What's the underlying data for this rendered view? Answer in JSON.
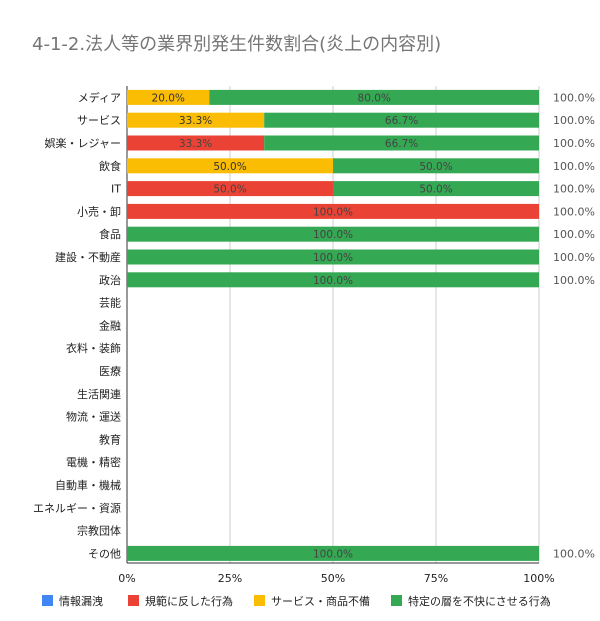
{
  "chart_data": {
    "type": "bar",
    "orientation": "horizontal",
    "stacked": "percent",
    "title": "4-1-2.法人等の業界別発生件数割合(炎上の内容別)",
    "categories": [
      "メディア",
      "サービス",
      "娯楽・レジャー",
      "飲食",
      "IT",
      "小売・卸",
      "食品",
      "建設・不動産",
      "政治",
      "芸能",
      "金融",
      "衣料・装飾",
      "医療",
      "生活関連",
      "物流・運送",
      "教育",
      "電機・精密",
      "自動車・機械",
      "エネルギー・資源",
      "宗教団体",
      "その他"
    ],
    "series": [
      {
        "name": "情報漏洩",
        "color": "#4285f4",
        "values": [
          0,
          0,
          0,
          0,
          0,
          0,
          0,
          0,
          0,
          0,
          0,
          0,
          0,
          0,
          0,
          0,
          0,
          0,
          0,
          0,
          0
        ],
        "labels": [
          "",
          "",
          "",
          "",
          "",
          "",
          "",
          "",
          "",
          "",
          "",
          "",
          "",
          "",
          "",
          "",
          "",
          "",
          "",
          "",
          ""
        ]
      },
      {
        "name": "規範に反した行為",
        "color": "#ea4335",
        "values": [
          0,
          0,
          33.3,
          0,
          50,
          100,
          0,
          0,
          0,
          0,
          0,
          0,
          0,
          0,
          0,
          0,
          0,
          0,
          0,
          0,
          0
        ],
        "labels": [
          "",
          "",
          "33.3%",
          "",
          "50.0%",
          "100.0%",
          "",
          "",
          "",
          "",
          "",
          "",
          "",
          "",
          "",
          "",
          "",
          "",
          "",
          "",
          ""
        ]
      },
      {
        "name": "サービス・商品不備",
        "color": "#fbbc04",
        "values": [
          20,
          33.3,
          0,
          50,
          0,
          0,
          0,
          0,
          0,
          0,
          0,
          0,
          0,
          0,
          0,
          0,
          0,
          0,
          0,
          0,
          0
        ],
        "labels": [
          "20.0%",
          "33.3%",
          "",
          "50.0%",
          "",
          "",
          "",
          "",
          "",
          "",
          "",
          "",
          "",
          "",
          "",
          "",
          "",
          "",
          "",
          "",
          ""
        ]
      },
      {
        "name": "特定の層を不快にさせる行為",
        "color": "#34a853",
        "values": [
          80,
          66.7,
          66.7,
          50,
          50,
          0,
          100,
          100,
          100,
          0,
          0,
          0,
          0,
          0,
          0,
          0,
          0,
          0,
          0,
          0,
          100
        ],
        "labels": [
          "80.0%",
          "66.7%",
          "66.7%",
          "50.0%",
          "50.0%",
          "",
          "100.0%",
          "100.0%",
          "100.0%",
          "",
          "",
          "",
          "",
          "",
          "",
          "",
          "",
          "",
          "",
          "",
          "100.0%"
        ]
      }
    ],
    "totals": [
      "100.0%",
      "100.0%",
      "100.0%",
      "100.0%",
      "100.0%",
      "100.0%",
      "100.0%",
      "100.0%",
      "100.0%",
      "",
      "",
      "",
      "",
      "",
      "",
      "",
      "",
      "",
      "",
      "",
      "100.0%"
    ],
    "xlim": [
      0,
      100
    ],
    "xticks": [
      "0%",
      "25%",
      "50%",
      "75%",
      "100%"
    ],
    "grid": true,
    "legend_position": "bottom"
  }
}
